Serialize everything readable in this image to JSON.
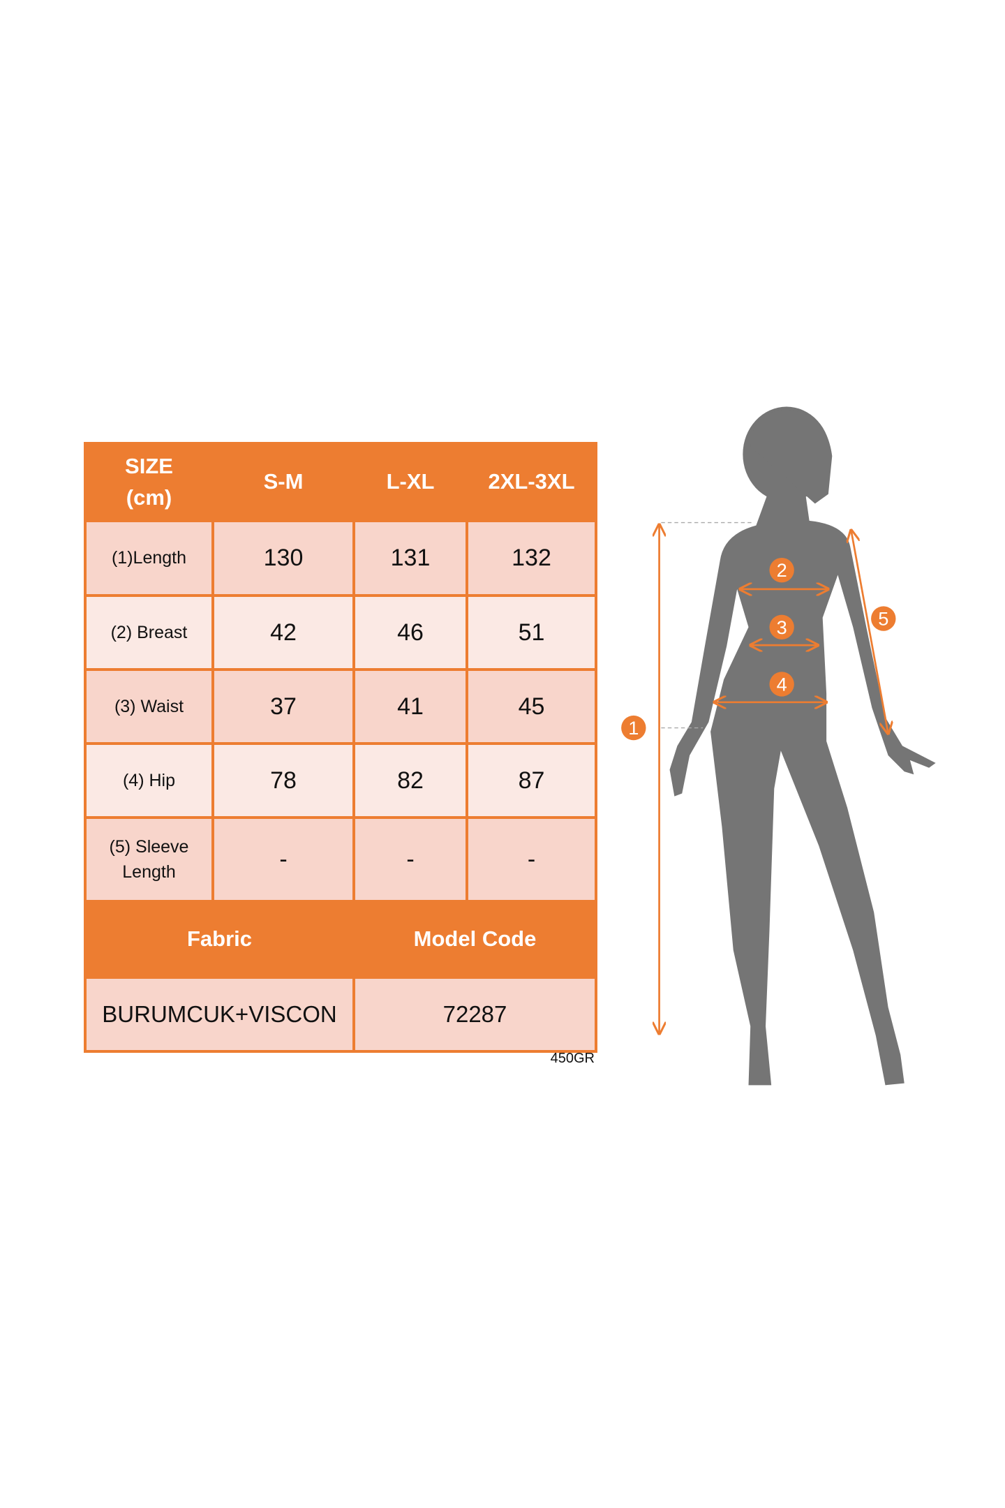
{
  "colors": {
    "accent": "#ED7D31",
    "cell_pink": "#F8D5CB",
    "cell_light": "#FBE9E4",
    "silhouette": "#757575"
  },
  "table": {
    "header": [
      "SIZE\n(cm)",
      "S-M",
      "L-XL",
      "2XL-3XL"
    ],
    "header_size_line1": "SIZE",
    "header_size_line2": "(cm)",
    "rows": [
      {
        "label": "(1)Length",
        "values": [
          "130",
          "131",
          "132"
        ]
      },
      {
        "label": "(2) Breast",
        "values": [
          "42",
          "46",
          "51"
        ]
      },
      {
        "label": "(3) Waist",
        "values": [
          "37",
          "41",
          "45"
        ]
      },
      {
        "label": "(4) Hip",
        "values": [
          "78",
          "82",
          "87"
        ]
      },
      {
        "label_line1": "(5) Sleeve",
        "label_line2": "Length",
        "values": [
          "-",
          "-",
          "-"
        ]
      }
    ],
    "fabric_label": "Fabric",
    "model_code_label": "Model Code",
    "fabric_value": "BURUMCUK+VISCON",
    "model_code_value": "72287"
  },
  "weight": "450GR",
  "figure": {
    "markers": [
      "1",
      "2",
      "3",
      "4",
      "5"
    ]
  }
}
